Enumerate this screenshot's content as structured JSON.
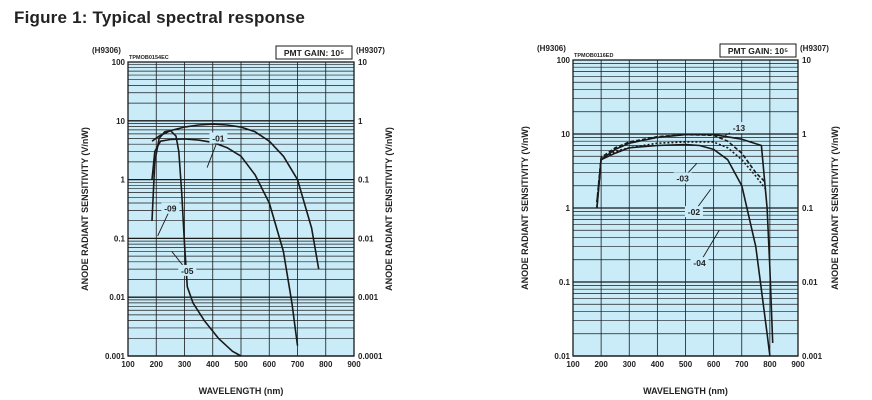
{
  "figure_title": "Figure 1: Typical spectral response",
  "colors": {
    "plot_bg": "#c9ecf8",
    "grid": "#1a1a1a",
    "curve": "#1a1a1a"
  },
  "chart_data": [
    {
      "type": "line",
      "y_scale": "log",
      "secondary_y_scale": "log",
      "grid": true,
      "model_left": "(H9306)",
      "model_right": "(H9307)",
      "code": "TPMOB0154EC",
      "badge": "PMT GAIN: 10⁵",
      "xlabel": "WAVELENGTH (nm)",
      "ylabel": "ANODE RADIANT SENSITIVITY (V/nW)",
      "ylabel_right": "ANODE RADIANT SENSITIVITY (V/nW)",
      "xlim": [
        100,
        900
      ],
      "ylim": [
        0.001,
        100
      ],
      "ylim_right": [
        0.0001,
        10
      ],
      "x_ticks": [
        "100",
        "200",
        "300",
        "400",
        "500",
        "600",
        "700",
        "800",
        "900"
      ],
      "y_ticks": [
        "0.001",
        "0.01",
        "0.1",
        "1",
        "10",
        "100"
      ],
      "y_ticks_right": [
        "0.0001",
        "0.001",
        "0.01",
        "0.1",
        "1",
        "10"
      ],
      "series": [
        {
          "name": "-01",
          "label_at": [
            420,
            5
          ],
          "leader_to": [
            380,
            1.6
          ],
          "points": [
            [
              185,
              4.5
            ],
            [
              210,
              5.5
            ],
            [
              250,
              6.8
            ],
            [
              300,
              7.8
            ],
            [
              350,
              8.5
            ],
            [
              400,
              8.8
            ],
            [
              450,
              8.5
            ],
            [
              500,
              7.8
            ],
            [
              550,
              6.5
            ],
            [
              600,
              4.5
            ],
            [
              650,
              2.5
            ],
            [
              700,
              1.0
            ],
            [
              750,
              0.15
            ],
            [
              775,
              0.03
            ]
          ]
        },
        {
          "name": "-09",
          "label_at": [
            250,
            0.32
          ],
          "leader_to": [
            205,
            0.11
          ],
          "points": [
            [
              185,
              0.2
            ],
            [
              195,
              2
            ],
            [
              210,
              5
            ],
            [
              230,
              6.5
            ],
            [
              250,
              6.8
            ],
            [
              270,
              5.5
            ],
            [
              280,
              3
            ],
            [
              290,
              0.6
            ],
            [
              300,
              0.08
            ],
            [
              310,
              0.015
            ],
            [
              330,
              0.008
            ],
            [
              370,
              0.004
            ],
            [
              420,
              0.002
            ],
            [
              470,
              0.0012
            ],
            [
              500,
              0.001
            ]
          ]
        },
        {
          "name": "-05",
          "label_at": [
            310,
            0.028
          ],
          "leader_to": [
            255,
            0.06
          ],
          "points": [
            [
              185,
              1
            ],
            [
              195,
              3
            ],
            [
              215,
              4.5
            ],
            [
              250,
              4.8
            ],
            [
              300,
              4.9
            ],
            [
              350,
              4.7
            ],
            [
              400,
              4.3
            ],
            [
              450,
              3.5
            ],
            [
              500,
              2.5
            ],
            [
              550,
              1.2
            ],
            [
              600,
              0.4
            ],
            [
              650,
              0.06
            ],
            [
              680,
              0.008
            ],
            [
              700,
              0.0015
            ]
          ]
        }
      ]
    },
    {
      "type": "line",
      "y_scale": "log",
      "secondary_y_scale": "log",
      "grid": true,
      "model_left": "(H9306)",
      "model_right": "(H9307)",
      "code": "TPMOB0116ED",
      "badge": "PMT GAIN: 10⁵",
      "xlabel": "WAVELENGTH (nm)",
      "ylabel": "ANODE RADIANT SENSITIVITY (V/nW)",
      "ylabel_right": "ANODE RADIANT SENSITIVITY (V/nW)",
      "xlim": [
        100,
        900
      ],
      "ylim": [
        0.01,
        100
      ],
      "ylim_right": [
        0.001,
        10
      ],
      "x_ticks": [
        "100",
        "200",
        "300",
        "400",
        "500",
        "600",
        "700",
        "800",
        "900"
      ],
      "y_ticks": [
        "0.01",
        "0.1",
        "1",
        "10",
        "100"
      ],
      "y_ticks_right": [
        "0.001",
        "0.01",
        "0.1",
        "1",
        "10"
      ],
      "series": [
        {
          "name": "-13",
          "label_at": [
            690,
            12
          ],
          "leader_to": [
            640,
            9.5
          ],
          "points": [
            [
              185,
              1
            ],
            [
              200,
              4.5
            ],
            [
              250,
              6.2
            ],
            [
              300,
              7.5
            ],
            [
              400,
              9
            ],
            [
              500,
              9.8
            ],
            [
              600,
              9.8
            ],
            [
              700,
              8.5
            ],
            [
              770,
              7
            ],
            [
              790,
              1
            ],
            [
              800,
              0.15
            ],
            [
              810,
              0.015
            ]
          ]
        },
        {
          "name": "-03",
          "label_at": [
            490,
            2.5
          ],
          "leader_to": [
            540,
            4
          ],
          "dash": "4 2",
          "points": [
            [
              185,
              1.2
            ],
            [
              200,
              4.8
            ],
            [
              250,
              6.5
            ],
            [
              300,
              7.8
            ],
            [
              400,
              9.2
            ],
            [
              500,
              9.8
            ],
            [
              600,
              9.6
            ],
            [
              650,
              8
            ],
            [
              700,
              5.5
            ],
            [
              750,
              3
            ],
            [
              780,
              2.3
            ]
          ]
        },
        {
          "name": "-02",
          "label_at": [
            530,
            0.88
          ],
          "leader_to": [
            590,
            1.8
          ],
          "dash": "2 2",
          "points": [
            [
              185,
              1.2
            ],
            [
              200,
              4.5
            ],
            [
              250,
              5.8
            ],
            [
              300,
              6.5
            ],
            [
              400,
              7.5
            ],
            [
              500,
              7.8
            ],
            [
              600,
              7.8
            ],
            [
              650,
              6.5
            ],
            [
              700,
              4.5
            ],
            [
              750,
              2.7
            ],
            [
              785,
              1.8
            ]
          ]
        },
        {
          "name": "-04",
          "label_at": [
            550,
            0.18
          ],
          "leader_to": [
            620,
            0.5
          ],
          "points": [
            [
              185,
              1
            ],
            [
              200,
              4.5
            ],
            [
              250,
              5.5
            ],
            [
              300,
              6.5
            ],
            [
              400,
              7
            ],
            [
              500,
              7.2
            ],
            [
              550,
              7
            ],
            [
              600,
              6.2
            ],
            [
              650,
              4.5
            ],
            [
              700,
              2
            ],
            [
              750,
              0.3
            ],
            [
              790,
              0.02
            ],
            [
              800,
              0.01
            ]
          ]
        }
      ]
    }
  ]
}
